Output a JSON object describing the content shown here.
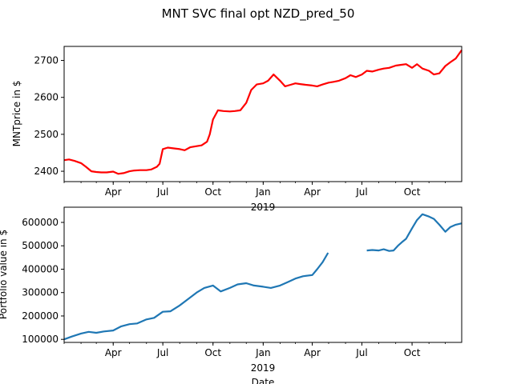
{
  "figure": {
    "title": "MNT SVC final opt NZD_pred_50"
  },
  "chart_data": [
    {
      "type": "line",
      "title": "MNT SVC final opt NZD_pred_50",
      "xlabel": "",
      "ylabel": "MNTprice in $",
      "xlim": [
        "2018-01-01",
        "2019-12-31"
      ],
      "ylim": [
        2372,
        2738
      ],
      "grid": false,
      "x_ticks": [
        "Apr",
        "Jul",
        "Oct",
        "Jan",
        "Apr",
        "Jul",
        "Oct"
      ],
      "x_tick_dates": [
        "2018-04-01",
        "2018-07-01",
        "2018-10-01",
        "2019-01-01",
        "2019-04-01",
        "2019-07-01",
        "2019-10-01"
      ],
      "x_year_label": "2019",
      "y_ticks": [
        2400,
        2500,
        2600,
        2700
      ],
      "series": [
        {
          "color": "#ff0000",
          "x": [
            "2018-01-01",
            "2018-01-10",
            "2018-01-20",
            "2018-02-01",
            "2018-02-10",
            "2018-02-20",
            "2018-03-01",
            "2018-03-10",
            "2018-03-20",
            "2018-04-01",
            "2018-04-10",
            "2018-04-20",
            "2018-05-01",
            "2018-05-10",
            "2018-05-20",
            "2018-06-01",
            "2018-06-10",
            "2018-06-20",
            "2018-06-25",
            "2018-07-01",
            "2018-07-10",
            "2018-07-20",
            "2018-08-01",
            "2018-08-10",
            "2018-08-20",
            "2018-09-01",
            "2018-09-10",
            "2018-09-20",
            "2018-09-25",
            "2018-10-01",
            "2018-10-10",
            "2018-10-20",
            "2018-11-01",
            "2018-11-10",
            "2018-11-20",
            "2018-12-01",
            "2018-12-10",
            "2018-12-20",
            "2019-01-01",
            "2019-01-10",
            "2019-01-20",
            "2019-02-01",
            "2019-02-10",
            "2019-02-20",
            "2019-03-01",
            "2019-03-10",
            "2019-03-20",
            "2019-04-01",
            "2019-04-10",
            "2019-04-20",
            "2019-05-01",
            "2019-05-10",
            "2019-05-20",
            "2019-06-01",
            "2019-06-10",
            "2019-06-20",
            "2019-07-01",
            "2019-07-10",
            "2019-07-20",
            "2019-08-01",
            "2019-08-10",
            "2019-08-20",
            "2019-09-01",
            "2019-09-10",
            "2019-09-20",
            "2019-10-01",
            "2019-10-10",
            "2019-10-20",
            "2019-11-01",
            "2019-11-10",
            "2019-11-20",
            "2019-12-01",
            "2019-12-10",
            "2019-12-20",
            "2019-12-31"
          ],
          "y": [
            2430,
            2432,
            2428,
            2422,
            2412,
            2400,
            2398,
            2397,
            2397,
            2399,
            2393,
            2395,
            2400,
            2402,
            2403,
            2403,
            2405,
            2412,
            2420,
            2460,
            2464,
            2462,
            2460,
            2457,
            2465,
            2468,
            2470,
            2480,
            2500,
            2540,
            2565,
            2563,
            2562,
            2563,
            2565,
            2585,
            2620,
            2635,
            2638,
            2645,
            2662,
            2645,
            2630,
            2634,
            2638,
            2636,
            2634,
            2632,
            2630,
            2635,
            2640,
            2642,
            2645,
            2652,
            2660,
            2655,
            2662,
            2672,
            2670,
            2675,
            2678,
            2680,
            2686,
            2688,
            2690,
            2680,
            2690,
            2678,
            2672,
            2662,
            2665,
            2685,
            2695,
            2705,
            2728
          ]
        }
      ]
    },
    {
      "type": "line",
      "title": "",
      "xlabel": "Date",
      "ylabel": "Portfolio value in $",
      "xlim": [
        "2018-01-01",
        "2019-12-31"
      ],
      "ylim": [
        87000,
        665000
      ],
      "grid": false,
      "x_ticks": [
        "Apr",
        "Jul",
        "Oct",
        "Jan",
        "Apr",
        "Jul",
        "Oct"
      ],
      "x_tick_dates": [
        "2018-04-01",
        "2018-07-01",
        "2018-10-01",
        "2019-01-01",
        "2019-04-01",
        "2019-07-01",
        "2019-10-01"
      ],
      "x_year_label": "2019",
      "y_ticks": [
        100000,
        200000,
        300000,
        400000,
        500000,
        600000
      ],
      "series": [
        {
          "color": "#1f77b4",
          "segments": [
            {
              "x": [
                "2018-01-01",
                "2018-01-15",
                "2018-02-01",
                "2018-02-15",
                "2018-03-01",
                "2018-03-15",
                "2018-04-01",
                "2018-04-15",
                "2018-05-01",
                "2018-05-15",
                "2018-06-01",
                "2018-06-15",
                "2018-07-01",
                "2018-07-15",
                "2018-08-01",
                "2018-08-15",
                "2018-09-01",
                "2018-09-15",
                "2018-10-01",
                "2018-10-15",
                "2018-11-01",
                "2018-11-15",
                "2018-12-01",
                "2018-12-15",
                "2019-01-01",
                "2019-01-15",
                "2019-02-01",
                "2019-02-15",
                "2019-03-01",
                "2019-03-15",
                "2019-04-01",
                "2019-04-10",
                "2019-04-20",
                "2019-04-30"
              ],
              "y": [
                100000,
                112000,
                125000,
                132000,
                128000,
                134000,
                138000,
                155000,
                165000,
                168000,
                185000,
                192000,
                218000,
                220000,
                245000,
                270000,
                300000,
                320000,
                330000,
                305000,
                320000,
                335000,
                340000,
                330000,
                325000,
                320000,
                330000,
                345000,
                360000,
                370000,
                375000,
                400000,
                430000,
                470000
              ]
            },
            {
              "x": [
                "2019-07-10",
                "2019-07-20",
                "2019-08-01",
                "2019-08-10",
                "2019-08-20",
                "2019-08-28",
                "2019-09-05",
                "2019-09-12",
                "2019-09-20",
                "2019-10-01",
                "2019-10-10",
                "2019-10-20",
                "2019-11-01",
                "2019-11-10",
                "2019-11-20",
                "2019-12-01",
                "2019-12-10",
                "2019-12-20",
                "2019-12-31"
              ],
              "y": [
                480000,
                482000,
                480000,
                485000,
                478000,
                480000,
                500000,
                515000,
                530000,
                575000,
                610000,
                635000,
                625000,
                615000,
                590000,
                560000,
                580000,
                590000,
                596000
              ]
            }
          ]
        }
      ]
    }
  ]
}
